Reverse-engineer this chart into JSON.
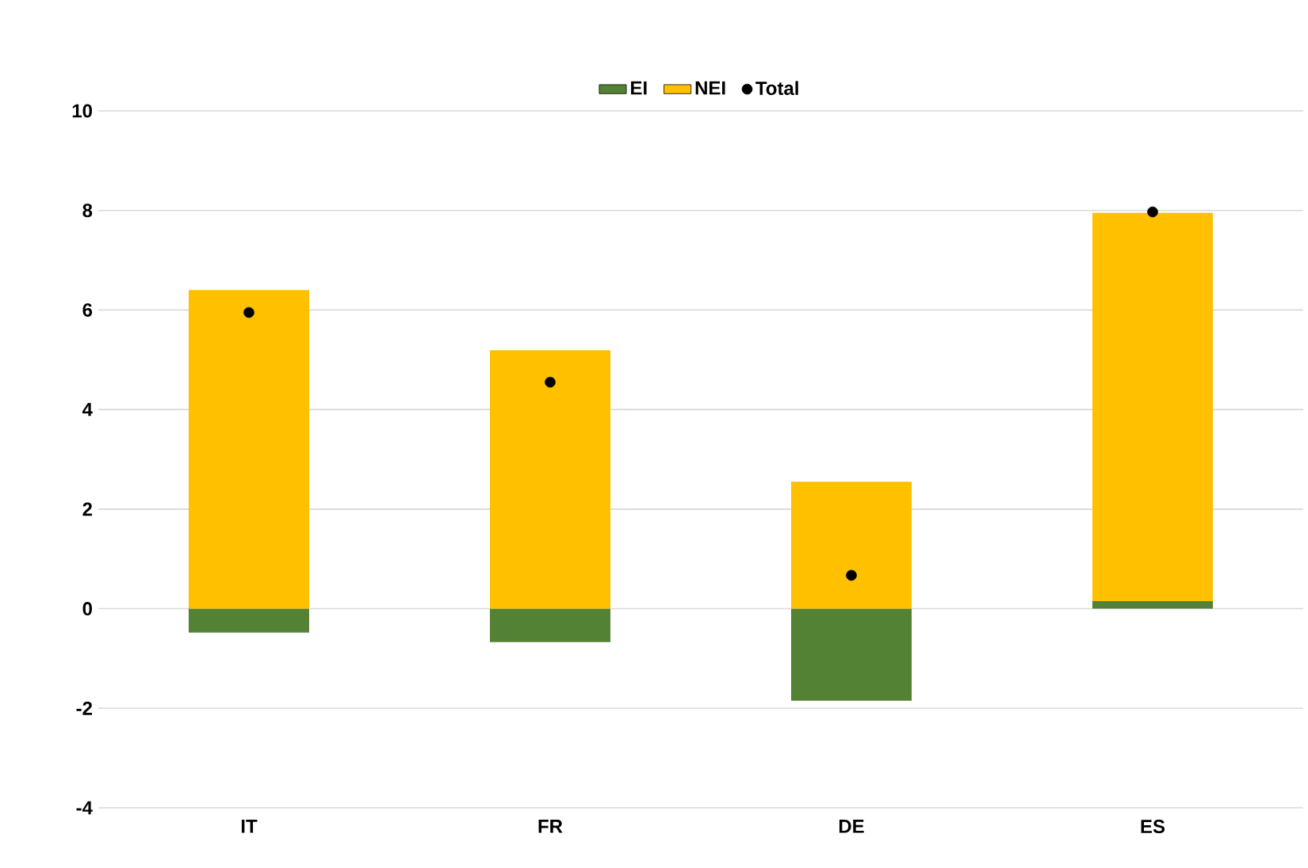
{
  "chart_data": {
    "type": "bar",
    "stacked": true,
    "categories": [
      "IT",
      "FR",
      "DE",
      "ES"
    ],
    "series": [
      {
        "name": "EI",
        "color": "#548235",
        "values": [
          -0.48,
          -0.67,
          -1.85,
          0.15
        ]
      },
      {
        "name": "NEI",
        "color": "#ffc000",
        "values": [
          6.4,
          5.19,
          2.55,
          7.8
        ]
      },
      {
        "name": "Total",
        "type": "scatter",
        "color": "#000000",
        "x": [
          "IT",
          "FR",
          "DE",
          "ES"
        ],
        "values": [
          5.95,
          4.55,
          0.67,
          7.97
        ]
      }
    ],
    "ylim": [
      -4,
      10
    ],
    "yticks": [
      -4,
      -2,
      0,
      2,
      4,
      6,
      8,
      10
    ],
    "grid": "y",
    "legend": "top"
  }
}
